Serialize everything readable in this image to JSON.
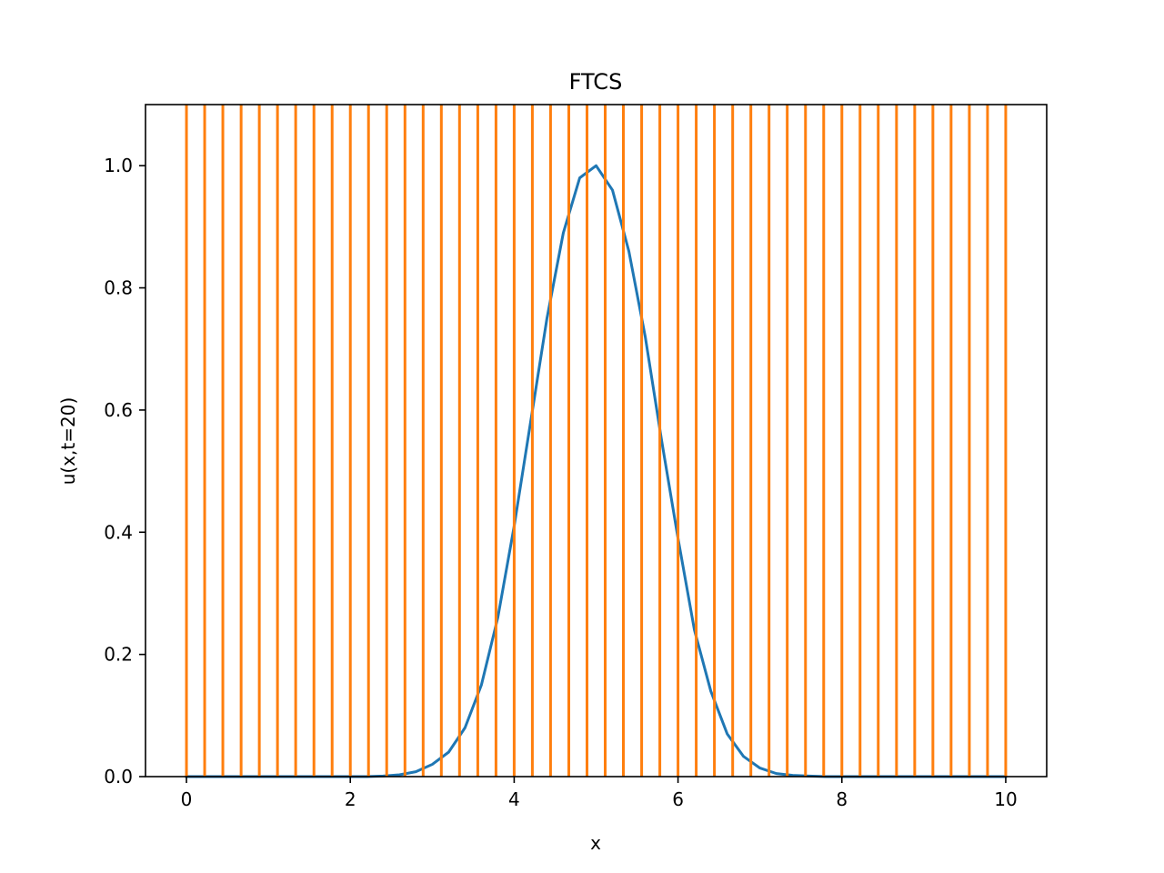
{
  "chart_data": {
    "type": "line",
    "title": "FTCS",
    "xlabel": "x",
    "ylabel": "u(x,t=20)",
    "xlim": [
      -0.5,
      10.5
    ],
    "ylim": [
      0.0,
      1.1
    ],
    "xticks": [
      0,
      2,
      4,
      6,
      8,
      10
    ],
    "xtick_labels": [
      "0",
      "2",
      "4",
      "6",
      "8",
      "10"
    ],
    "yticks": [
      0.0,
      0.2,
      0.4,
      0.6,
      0.8,
      1.0
    ],
    "ytick_labels": [
      "0.0",
      "0.2",
      "0.4",
      "0.6",
      "0.8",
      "1.0"
    ],
    "grid": false,
    "legend": "none",
    "series": [
      {
        "kind": "line",
        "color": "#1f77b4",
        "x": [
          0.0,
          0.2,
          0.4,
          0.6,
          0.8,
          1.0,
          1.2,
          1.4,
          1.6,
          1.8,
          2.0,
          2.2,
          2.4,
          2.6,
          2.8,
          3.0,
          3.2,
          3.4,
          3.6,
          3.8,
          4.0,
          4.2,
          4.4,
          4.6,
          4.8,
          5.0,
          5.2,
          5.4,
          5.6,
          5.8,
          6.0,
          6.2,
          6.4,
          6.6,
          6.8,
          7.0,
          7.2,
          7.4,
          7.6,
          7.8,
          8.0,
          8.2,
          8.4,
          8.6,
          8.8,
          9.0,
          9.2,
          9.4,
          9.6,
          9.8,
          10.0
        ],
        "y": [
          0.0,
          0.0,
          0.0,
          0.0,
          0.0,
          0.0,
          0.0,
          0.0,
          0.0,
          0.0,
          0.0,
          0.0,
          0.001,
          0.003,
          0.008,
          0.02,
          0.04,
          0.08,
          0.15,
          0.26,
          0.41,
          0.58,
          0.75,
          0.89,
          0.98,
          1.0,
          0.96,
          0.86,
          0.72,
          0.55,
          0.39,
          0.24,
          0.14,
          0.07,
          0.033,
          0.014,
          0.005,
          0.002,
          0.001,
          0.0,
          0.0,
          0.0,
          0.0,
          0.0,
          0.0,
          0.0,
          0.0,
          0.0,
          0.0,
          0.0,
          0.0
        ]
      },
      {
        "kind": "vertical-lines",
        "color": "#ff7f0e",
        "x": [
          0.0,
          0.222,
          0.444,
          0.667,
          0.889,
          1.111,
          1.333,
          1.556,
          1.778,
          2.0,
          2.222,
          2.444,
          2.667,
          2.889,
          3.111,
          3.333,
          3.556,
          3.778,
          4.0,
          4.222,
          4.444,
          4.667,
          4.889,
          5.111,
          5.333,
          5.556,
          5.778,
          6.0,
          6.222,
          6.444,
          6.667,
          6.889,
          7.111,
          7.333,
          7.556,
          7.778,
          8.0,
          8.222,
          8.444,
          8.667,
          8.889,
          9.111,
          9.333,
          9.556,
          9.778,
          10.0
        ]
      }
    ]
  }
}
